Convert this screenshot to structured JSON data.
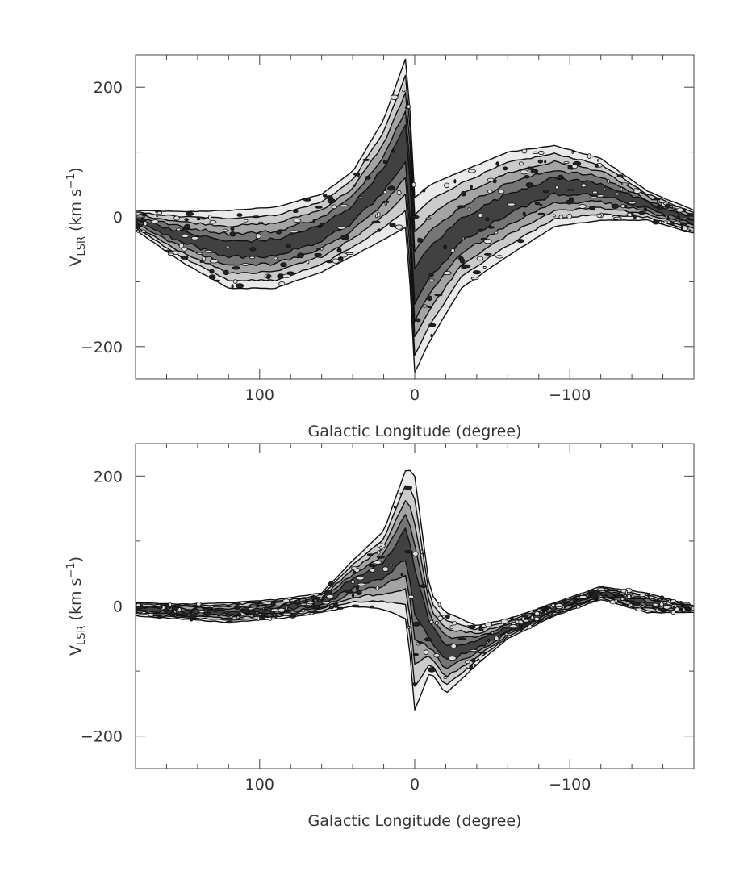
{
  "chart_data": [
    {
      "type": "heatmap",
      "panel": "top",
      "xlabel": "Galactic Longitude (degree)",
      "ylabel_main": "V",
      "ylabel_sub": "LSR",
      "ylabel_tail": " (km s",
      "ylabel_sup": "−1",
      "ylabel_close": ")",
      "xlim": [
        180,
        -180
      ],
      "ylim": [
        -250,
        250
      ],
      "xticks": [
        100,
        0,
        -100
      ],
      "xtick_labels": [
        "100",
        "0",
        "−100"
      ],
      "yticks": [
        200,
        0,
        -200
      ],
      "ytick_labels": [
        "200",
        "0",
        "−200"
      ],
      "grid": false,
      "colormap": "grayscale",
      "features": [
        {
          "name": "emission band",
          "x": [
            180,
            150,
            120,
            90,
            60,
            40,
            20,
            5,
            0,
            -10,
            -30,
            -60,
            -90,
            -120,
            -150,
            -180
          ],
          "v_upper": [
            10,
            8,
            10,
            15,
            35,
            70,
            150,
            250,
            30,
            50,
            70,
            100,
            110,
            90,
            40,
            10
          ],
          "v_lower": [
            -20,
            -70,
            -110,
            -110,
            -85,
            -60,
            -35,
            -15,
            -240,
            -190,
            -110,
            -60,
            -15,
            -5,
            -5,
            -25
          ]
        }
      ]
    },
    {
      "type": "heatmap",
      "panel": "bottom",
      "xlabel": "Galactic Longitude (degree)",
      "ylabel_main": "V",
      "ylabel_sub": "LSR",
      "ylabel_tail": " (km s",
      "ylabel_sup": "−1",
      "ylabel_close": ")",
      "xlim": [
        180,
        -180
      ],
      "ylim": [
        -250,
        250
      ],
      "xticks": [
        100,
        0,
        -100
      ],
      "xtick_labels": [
        "100",
        "0",
        "−100"
      ],
      "yticks": [
        200,
        0,
        -200
      ],
      "ytick_labels": [
        "200",
        "0",
        "−200"
      ],
      "grid": false,
      "colormap": "grayscale",
      "features": [
        {
          "name": "emission band",
          "x": [
            180,
            150,
            120,
            90,
            60,
            40,
            20,
            5,
            0,
            -10,
            -20,
            -40,
            -60,
            -90,
            -120,
            -150,
            -180
          ],
          "v_upper": [
            5,
            3,
            5,
            10,
            20,
            70,
            115,
            215,
            200,
            20,
            -10,
            -30,
            -20,
            5,
            30,
            20,
            0
          ],
          "v_lower": [
            -15,
            -20,
            -25,
            -20,
            -10,
            0,
            -5,
            -20,
            -160,
            -100,
            -135,
            -90,
            -50,
            -15,
            10,
            -10,
            -10
          ]
        }
      ]
    }
  ]
}
